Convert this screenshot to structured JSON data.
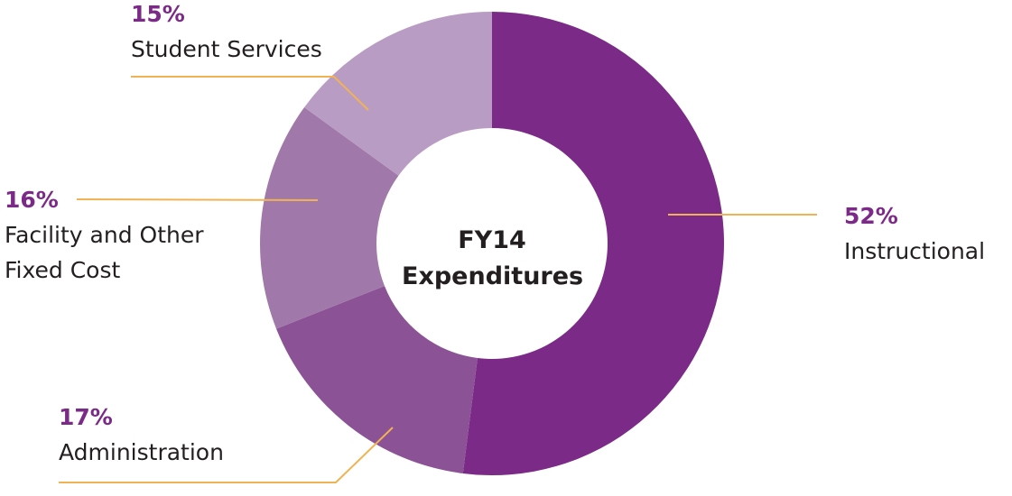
{
  "chart_data": {
    "type": "donut",
    "title": "FY14 Expenditures",
    "categories": [
      "Instructional",
      "Administration",
      "Facility and Other Fixed Cost",
      "Student Services"
    ],
    "values": [
      52,
      17,
      16,
      15
    ],
    "value_labels": [
      "52%",
      "17%",
      "16%",
      "15%"
    ],
    "colors": [
      "#7b2a87",
      "#8b5295",
      "#a178aa",
      "#b99cc4"
    ]
  }
}
